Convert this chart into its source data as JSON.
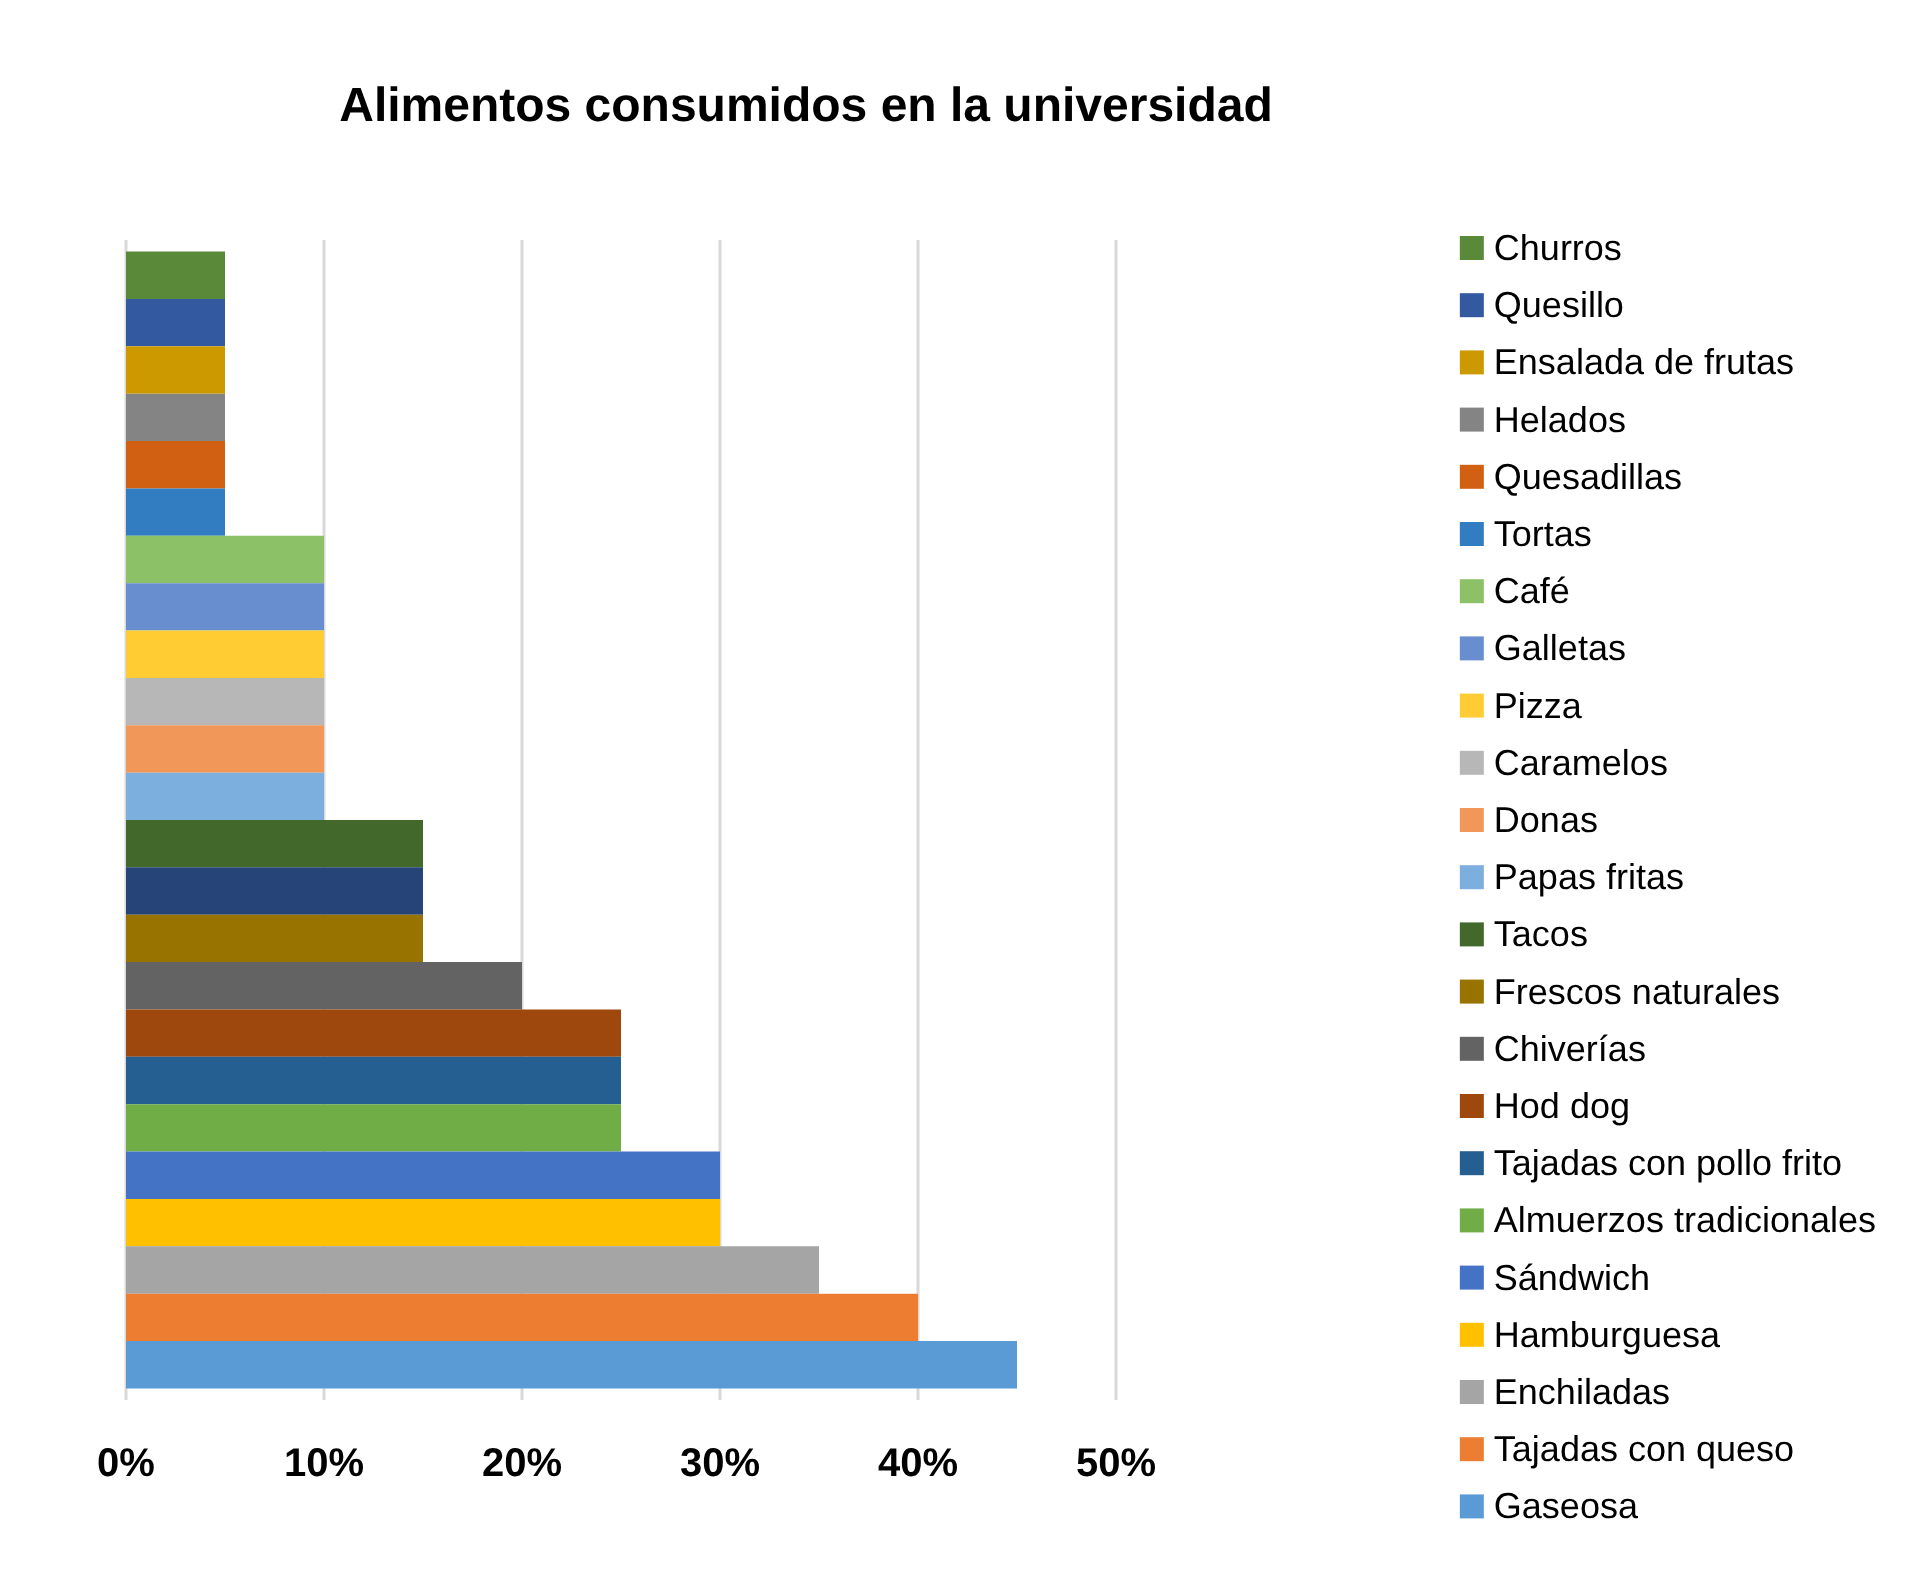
{
  "chart_data": {
    "type": "bar",
    "orientation": "horizontal",
    "title": "Alimentos consumidos en la universidad",
    "categories": [
      null
    ],
    "xlim": [
      0,
      50
    ],
    "xticks": [
      {
        "value": 0,
        "label": "0%"
      },
      {
        "value": 10,
        "label": "10%"
      },
      {
        "value": 20,
        "label": "20%"
      },
      {
        "value": 30,
        "label": "30%"
      },
      {
        "value": 40,
        "label": "40%"
      },
      {
        "value": 50,
        "label": "50%"
      }
    ],
    "grid": "x",
    "legend": "right",
    "series": [
      {
        "name": "Gaseosa",
        "color": "#5b9bd5",
        "values": [
          45
        ]
      },
      {
        "name": "Tajadas con queso",
        "color": "#ed7d31",
        "values": [
          40
        ]
      },
      {
        "name": "Enchiladas",
        "color": "#a5a5a5",
        "values": [
          35
        ]
      },
      {
        "name": "Hamburguesa",
        "color": "#ffc000",
        "values": [
          30
        ]
      },
      {
        "name": "Sándwich",
        "color": "#4472c4",
        "values": [
          30
        ]
      },
      {
        "name": "Almuerzos tradicionales",
        "color": "#70ad47",
        "values": [
          25
        ]
      },
      {
        "name": "Tajadas con pollo frito",
        "color": "#255e91",
        "values": [
          25
        ]
      },
      {
        "name": "Hod dog",
        "color": "#9e480e",
        "values": [
          25
        ]
      },
      {
        "name": "Chiverías",
        "color": "#636363",
        "values": [
          20
        ]
      },
      {
        "name": "Frescos naturales",
        "color": "#997300",
        "values": [
          15
        ]
      },
      {
        "color": "#264478",
        "values": [
          15
        ]
      },
      {
        "name": "Tacos",
        "color": "#43682b",
        "values": [
          15
        ]
      },
      {
        "name": "Papas fritas",
        "color": "#7cafdd",
        "values": [
          10
        ]
      },
      {
        "name": "Donas",
        "color": "#f1975a",
        "values": [
          10
        ]
      },
      {
        "name": "Caramelos",
        "color": "#b7b7b7",
        "values": [
          10
        ]
      },
      {
        "name": "Pizza",
        "color": "#ffcd33",
        "values": [
          10
        ]
      },
      {
        "name": "Galletas",
        "color": "#698ed0",
        "values": [
          10
        ]
      },
      {
        "name": "Café",
        "color": "#8cc168",
        "values": [
          10
        ]
      },
      {
        "name": "Tortas",
        "color": "#327dc2",
        "values": [
          5
        ]
      },
      {
        "name": "Quesadillas",
        "color": "#d26012",
        "values": [
          5
        ]
      },
      {
        "name": "Helados",
        "color": "#848484",
        "values": [
          5
        ]
      },
      {
        "name": "Ensalada de frutas",
        "color": "#cc9a00",
        "values": [
          5
        ]
      },
      {
        "name": "Quesillo",
        "color": "#335aa1",
        "values": [
          5
        ]
      },
      {
        "name": "Churros",
        "color": "#5a8a39",
        "values": [
          5
        ]
      }
    ]
  }
}
